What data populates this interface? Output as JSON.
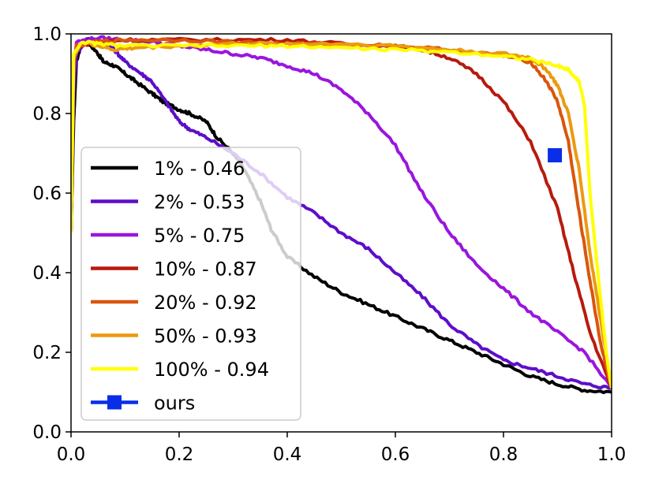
{
  "chart_data": {
    "type": "line",
    "title": "",
    "xlabel": "",
    "ylabel": "",
    "xlim": [
      0.0,
      1.0
    ],
    "ylim": [
      0.0,
      1.0
    ],
    "xticks": [
      "0.0",
      "0.2",
      "0.4",
      "0.6",
      "0.8",
      "1.0"
    ],
    "yticks": [
      "0.0",
      "0.2",
      "0.4",
      "0.6",
      "0.8",
      "1.0"
    ],
    "grid": false,
    "legend_position": "center-left",
    "series": [
      {
        "name": "1% - 0.46",
        "color": "#000000",
        "points": [
          [
            0,
            0.5
          ],
          [
            0.005,
            0.78
          ],
          [
            0.01,
            0.93
          ],
          [
            0.02,
            0.98
          ],
          [
            0.03,
            0.98
          ],
          [
            0.05,
            0.95
          ],
          [
            0.06,
            0.93
          ],
          [
            0.08,
            0.92
          ],
          [
            0.1,
            0.9
          ],
          [
            0.12,
            0.88
          ],
          [
            0.15,
            0.85
          ],
          [
            0.17,
            0.83
          ],
          [
            0.2,
            0.81
          ],
          [
            0.22,
            0.8
          ],
          [
            0.25,
            0.78
          ],
          [
            0.27,
            0.74
          ],
          [
            0.3,
            0.7
          ],
          [
            0.32,
            0.66
          ],
          [
            0.35,
            0.58
          ],
          [
            0.37,
            0.51
          ],
          [
            0.4,
            0.44
          ],
          [
            0.45,
            0.39
          ],
          [
            0.5,
            0.35
          ],
          [
            0.55,
            0.32
          ],
          [
            0.6,
            0.29
          ],
          [
            0.65,
            0.26
          ],
          [
            0.7,
            0.23
          ],
          [
            0.75,
            0.2
          ],
          [
            0.8,
            0.17
          ],
          [
            0.85,
            0.14
          ],
          [
            0.9,
            0.12
          ],
          [
            0.95,
            0.105
          ],
          [
            1.0,
            0.1
          ]
        ]
      },
      {
        "name": "2% - 0.53",
        "color": "#5d0ec9",
        "points": [
          [
            0,
            0.5
          ],
          [
            0.005,
            0.85
          ],
          [
            0.01,
            0.95
          ],
          [
            0.03,
            0.99
          ],
          [
            0.06,
            0.98
          ],
          [
            0.08,
            0.96
          ],
          [
            0.1,
            0.93
          ],
          [
            0.13,
            0.9
          ],
          [
            0.15,
            0.88
          ],
          [
            0.18,
            0.82
          ],
          [
            0.2,
            0.78
          ],
          [
            0.22,
            0.76
          ],
          [
            0.25,
            0.74
          ],
          [
            0.3,
            0.7
          ],
          [
            0.35,
            0.65
          ],
          [
            0.4,
            0.59
          ],
          [
            0.45,
            0.55
          ],
          [
            0.5,
            0.5
          ],
          [
            0.55,
            0.46
          ],
          [
            0.6,
            0.4
          ],
          [
            0.65,
            0.34
          ],
          [
            0.7,
            0.27
          ],
          [
            0.75,
            0.22
          ],
          [
            0.8,
            0.18
          ],
          [
            0.85,
            0.16
          ],
          [
            0.9,
            0.14
          ],
          [
            0.95,
            0.12
          ],
          [
            1.0,
            0.11
          ]
        ]
      },
      {
        "name": "5% - 0.75",
        "color": "#9a15de",
        "points": [
          [
            0,
            0.5
          ],
          [
            0.005,
            0.9
          ],
          [
            0.01,
            0.98
          ],
          [
            0.05,
            0.99
          ],
          [
            0.1,
            0.985
          ],
          [
            0.15,
            0.98
          ],
          [
            0.2,
            0.97
          ],
          [
            0.25,
            0.96
          ],
          [
            0.3,
            0.95
          ],
          [
            0.35,
            0.94
          ],
          [
            0.4,
            0.92
          ],
          [
            0.45,
            0.9
          ],
          [
            0.5,
            0.86
          ],
          [
            0.55,
            0.8
          ],
          [
            0.6,
            0.72
          ],
          [
            0.65,
            0.6
          ],
          [
            0.7,
            0.5
          ],
          [
            0.75,
            0.42
          ],
          [
            0.8,
            0.36
          ],
          [
            0.85,
            0.3
          ],
          [
            0.9,
            0.25
          ],
          [
            0.95,
            0.2
          ],
          [
            1.0,
            0.11
          ]
        ]
      },
      {
        "name": "10% - 0.87",
        "color": "#b81a0e",
        "points": [
          [
            0,
            0.5
          ],
          [
            0.005,
            0.92
          ],
          [
            0.01,
            0.97
          ],
          [
            0.05,
            0.98
          ],
          [
            0.1,
            0.985
          ],
          [
            0.2,
            0.985
          ],
          [
            0.3,
            0.985
          ],
          [
            0.4,
            0.985
          ],
          [
            0.5,
            0.975
          ],
          [
            0.6,
            0.97
          ],
          [
            0.65,
            0.96
          ],
          [
            0.7,
            0.94
          ],
          [
            0.75,
            0.9
          ],
          [
            0.8,
            0.83
          ],
          [
            0.85,
            0.73
          ],
          [
            0.9,
            0.56
          ],
          [
            0.93,
            0.4
          ],
          [
            0.96,
            0.25
          ],
          [
            1.0,
            0.11
          ]
        ]
      },
      {
        "name": "20% - 0.92",
        "color": "#d9560d",
        "points": [
          [
            0,
            0.5
          ],
          [
            0.005,
            0.93
          ],
          [
            0.01,
            0.97
          ],
          [
            0.05,
            0.98
          ],
          [
            0.1,
            0.985
          ],
          [
            0.2,
            0.985
          ],
          [
            0.3,
            0.98
          ],
          [
            0.4,
            0.975
          ],
          [
            0.5,
            0.975
          ],
          [
            0.6,
            0.97
          ],
          [
            0.7,
            0.96
          ],
          [
            0.8,
            0.945
          ],
          [
            0.85,
            0.93
          ],
          [
            0.88,
            0.88
          ],
          [
            0.9,
            0.83
          ],
          [
            0.92,
            0.73
          ],
          [
            0.94,
            0.55
          ],
          [
            0.96,
            0.38
          ],
          [
            0.98,
            0.22
          ],
          [
            1.0,
            0.11
          ]
        ]
      },
      {
        "name": "50% - 0.93",
        "color": "#ec9a10",
        "points": [
          [
            0,
            0.5
          ],
          [
            0.005,
            0.94
          ],
          [
            0.02,
            0.98
          ],
          [
            0.05,
            0.97
          ],
          [
            0.08,
            0.96
          ],
          [
            0.12,
            0.965
          ],
          [
            0.2,
            0.97
          ],
          [
            0.3,
            0.975
          ],
          [
            0.4,
            0.975
          ],
          [
            0.5,
            0.975
          ],
          [
            0.6,
            0.97
          ],
          [
            0.7,
            0.96
          ],
          [
            0.8,
            0.95
          ],
          [
            0.85,
            0.94
          ],
          [
            0.88,
            0.91
          ],
          [
            0.9,
            0.87
          ],
          [
            0.92,
            0.8
          ],
          [
            0.94,
            0.66
          ],
          [
            0.96,
            0.45
          ],
          [
            0.98,
            0.28
          ],
          [
            1.0,
            0.11
          ]
        ]
      },
      {
        "name": "100% - 0.94",
        "color": "#ffff00",
        "points": [
          [
            0,
            0.5
          ],
          [
            0.005,
            0.95
          ],
          [
            0.02,
            0.98
          ],
          [
            0.05,
            0.975
          ],
          [
            0.1,
            0.97
          ],
          [
            0.2,
            0.97
          ],
          [
            0.3,
            0.97
          ],
          [
            0.4,
            0.97
          ],
          [
            0.5,
            0.965
          ],
          [
            0.6,
            0.96
          ],
          [
            0.7,
            0.955
          ],
          [
            0.8,
            0.945
          ],
          [
            0.85,
            0.935
          ],
          [
            0.9,
            0.92
          ],
          [
            0.92,
            0.91
          ],
          [
            0.94,
            0.88
          ],
          [
            0.95,
            0.82
          ],
          [
            0.96,
            0.6
          ],
          [
            0.98,
            0.33
          ],
          [
            0.99,
            0.2
          ],
          [
            1.0,
            0.11
          ]
        ]
      }
    ],
    "markers": [
      {
        "name": "ours",
        "color": "#0a2ee8",
        "x": 0.895,
        "y": 0.695
      }
    ]
  }
}
